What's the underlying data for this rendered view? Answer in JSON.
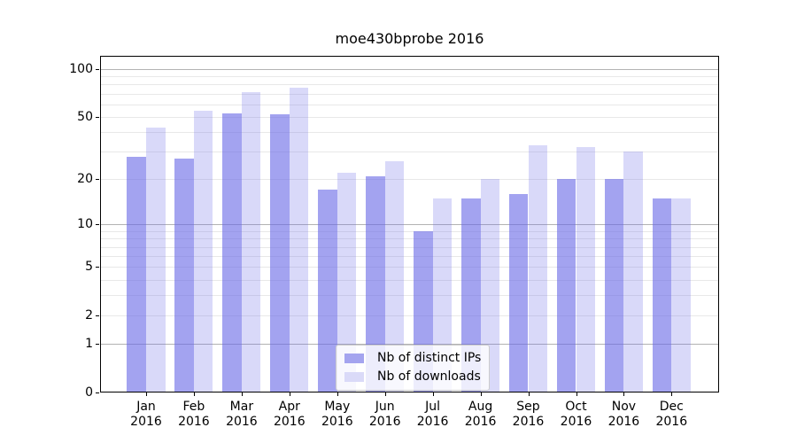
{
  "chart_data": {
    "type": "bar",
    "title": "moe430bprobe 2016",
    "year_label": "2016",
    "categories": [
      "Jan",
      "Feb",
      "Mar",
      "Apr",
      "May",
      "Jun",
      "Jul",
      "Aug",
      "Sep",
      "Oct",
      "Nov",
      "Dec"
    ],
    "series": [
      {
        "name": "Nb of distinct IPs",
        "values": [
          28,
          27,
          53,
          52,
          17,
          21,
          9,
          15,
          16,
          20,
          20,
          15
        ],
        "fill": "rgba(102,102,230,0.60)",
        "legend_swatch": "#a4a4ef"
      },
      {
        "name": "Nb of downloads",
        "values": [
          43,
          55,
          72,
          76,
          22,
          26,
          15,
          20,
          33,
          32,
          30,
          15
        ],
        "fill": "rgba(102,102,230,0.25)",
        "legend_swatch": "#dadaf8"
      }
    ],
    "y_scale": "log10(value+1)",
    "ylim": [
      0,
      121
    ],
    "y_tick_labels": [
      100,
      50,
      20,
      10,
      5,
      2,
      1,
      0
    ],
    "y_major_gridlines": [
      1,
      10,
      100
    ],
    "y_minor_gridlines": [
      2,
      3,
      4,
      5,
      6,
      7,
      8,
      9,
      20,
      30,
      40,
      50,
      60,
      70,
      80,
      90
    ],
    "grid": "on",
    "legend_position": "lower center",
    "colors": {
      "major_grid": "#b3b3b3",
      "minor_grid": "#e8e8e8",
      "spine": "#000000",
      "text": "#000000",
      "background": "#ffffff"
    }
  }
}
